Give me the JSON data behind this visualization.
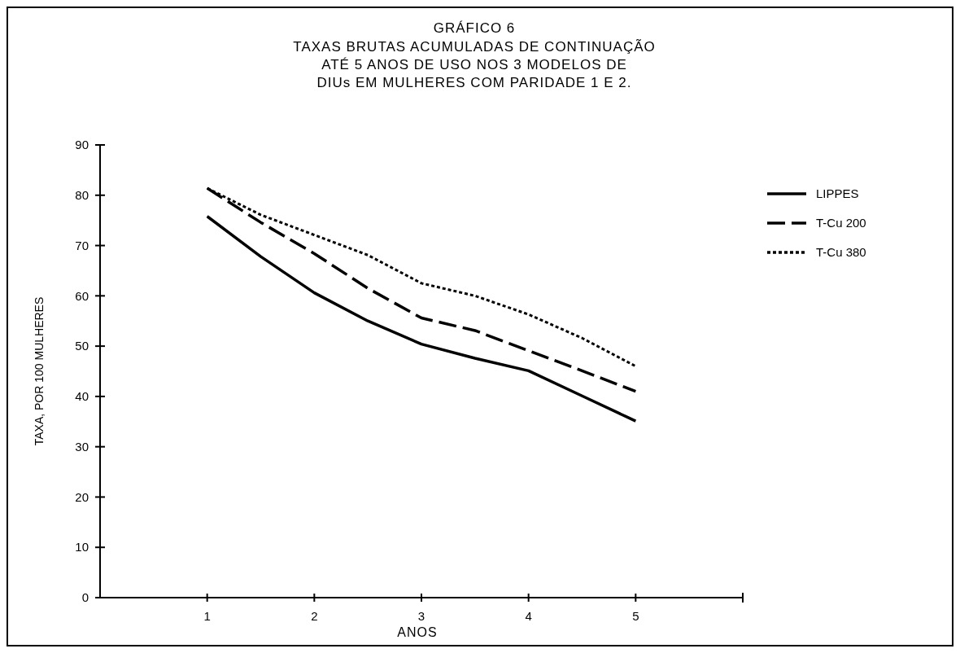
{
  "chart_data": {
    "type": "line",
    "title": "GRÁFICO 6",
    "subtitle": "TAXAS BRUTAS ACUMULADAS DE CONTINUAÇÃO\nATÉ 5 ANOS DE USO NOS 3 MODELOS DE\nDIUs EM MULHERES COM PARIDADE 1 E 2.",
    "xlabel": "ANOS",
    "ylabel": "TAXA, POR 100 MULHERES",
    "x": [
      1,
      1.5,
      2,
      2.5,
      3,
      3.5,
      4,
      4.5,
      5
    ],
    "series": [
      {
        "name": "LIPPES",
        "color": "#000000",
        "line_style": "solid",
        "values": [
          75.8,
          67.8,
          60.6,
          55,
          50.4,
          47.6,
          45.1,
          40.1,
          35.1
        ]
      },
      {
        "name": "T-Cu 200",
        "color": "#000000",
        "line_style": "dashed",
        "values": [
          81.4,
          74.6,
          68.4,
          61.5,
          55.6,
          53.1,
          49.1,
          45.1,
          41
        ]
      },
      {
        "name": "T-Cu 380",
        "color": "#000000",
        "line_style": "dotted",
        "values": [
          81.4,
          76.1,
          72.1,
          68.1,
          62.5,
          60,
          56.3,
          51.6,
          46
        ]
      }
    ],
    "xlim": [
      0,
      6
    ],
    "xticks": [
      1,
      2,
      3,
      4,
      5
    ],
    "ylim": [
      0,
      90
    ],
    "yticks": [
      0,
      10,
      20,
      30,
      40,
      50,
      60,
      70,
      80,
      90
    ],
    "legend": "top right",
    "grid": false,
    "marker": "none"
  }
}
